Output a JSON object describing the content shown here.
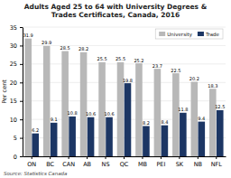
{
  "chart_data": {
    "type": "bar",
    "title": "Adults Aged 25 to 64 with University Degrees &\nTrades Certificates, Canada, 2016",
    "categories": [
      "ON",
      "BC",
      "CAN",
      "AB",
      "NS",
      "QC",
      "MB",
      "PEI",
      "SK",
      "NB",
      "NFL"
    ],
    "series": [
      {
        "name": "University",
        "color": "#b8b8b8",
        "values": [
          31.9,
          29.9,
          28.5,
          28.2,
          25.5,
          25.5,
          25.2,
          23.7,
          22.5,
          20.2,
          18.3
        ]
      },
      {
        "name": "Trade",
        "color": "#1c3664",
        "values": [
          6.2,
          9.1,
          10.8,
          10.6,
          10.6,
          19.8,
          8.2,
          8.4,
          11.8,
          9.4,
          12.5
        ]
      }
    ],
    "ylabel": "Per cent",
    "ylim": [
      0,
      35
    ],
    "yticks": [
      0,
      5,
      10,
      15,
      20,
      25,
      30,
      35
    ],
    "grid": true,
    "legend": "upper right",
    "data_labels": true,
    "annotations": [
      "Source: Statistics Canada"
    ]
  }
}
